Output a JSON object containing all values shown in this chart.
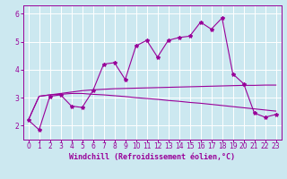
{
  "xlabel": "Windchill (Refroidissement éolien,°C)",
  "bg_color": "#cce8f0",
  "grid_color": "#ffffff",
  "line_color": "#990099",
  "xlim": [
    -0.5,
    23.5
  ],
  "ylim": [
    1.5,
    6.3
  ],
  "xticks": [
    0,
    1,
    2,
    3,
    4,
    5,
    6,
    7,
    8,
    9,
    10,
    11,
    12,
    13,
    14,
    15,
    16,
    17,
    18,
    19,
    20,
    21,
    22,
    23
  ],
  "yticks": [
    2,
    3,
    4,
    5,
    6
  ],
  "line1_x": [
    0,
    1,
    2,
    3,
    4,
    5,
    6,
    7,
    8,
    9,
    10,
    11,
    12,
    13,
    14,
    15,
    16,
    17,
    18,
    19,
    20,
    21,
    22,
    23
  ],
  "line1_y": [
    2.2,
    1.85,
    3.05,
    3.1,
    2.7,
    2.65,
    3.25,
    4.2,
    4.25,
    3.65,
    4.85,
    5.05,
    4.45,
    5.05,
    5.15,
    5.2,
    5.7,
    5.45,
    5.85,
    3.85,
    3.5,
    2.45,
    2.3,
    2.4
  ],
  "line2_x": [
    0,
    1,
    2,
    3,
    4,
    5,
    6,
    7,
    8,
    9,
    10,
    11,
    12,
    13,
    14,
    15,
    16,
    17,
    18,
    19,
    20,
    21,
    22,
    23
  ],
  "line2_y": [
    2.2,
    3.05,
    3.1,
    3.15,
    3.2,
    3.25,
    3.28,
    3.3,
    3.32,
    3.33,
    3.34,
    3.35,
    3.36,
    3.37,
    3.38,
    3.39,
    3.4,
    3.41,
    3.42,
    3.43,
    3.44,
    3.44,
    3.45,
    3.45
  ],
  "line3_x": [
    0,
    1,
    2,
    3,
    4,
    5,
    6,
    7,
    8,
    9,
    10,
    11,
    12,
    13,
    14,
    15,
    16,
    17,
    18,
    19,
    20,
    21,
    22,
    23
  ],
  "line3_y": [
    2.2,
    3.05,
    3.1,
    3.12,
    3.15,
    3.15,
    3.12,
    3.1,
    3.07,
    3.04,
    3.0,
    2.97,
    2.94,
    2.9,
    2.87,
    2.83,
    2.8,
    2.76,
    2.72,
    2.68,
    2.64,
    2.6,
    2.56,
    2.52
  ],
  "xlabel_fontsize": 6.0,
  "tick_fontsize": 5.5
}
